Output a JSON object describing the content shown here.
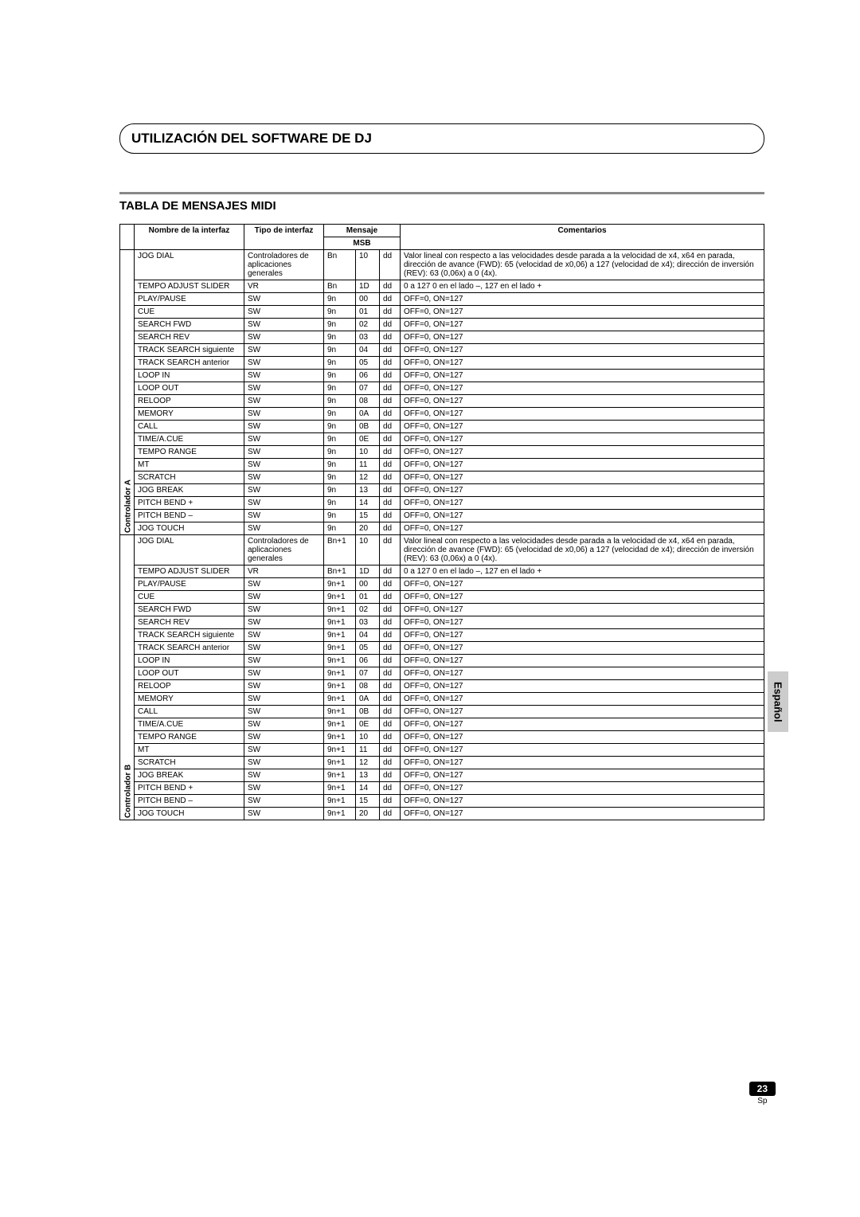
{
  "title": "UTILIZACIÓN DEL SOFTWARE DE DJ",
  "section_title": "TABLA DE MENSAJES MIDI",
  "headers": {
    "name": "Nombre de la interfaz",
    "type": "Tipo de interfaz",
    "message": "Mensaje",
    "msb": "MSB",
    "comments": "Comentarios"
  },
  "side_label": "Español",
  "page_number": "23",
  "page_lang": "Sp",
  "groups": [
    {
      "label": "Controlador A",
      "rows": [
        {
          "name": "JOG DIAL",
          "type": "Controladores de aplicaciones generales",
          "m1": "Bn",
          "m2": "10",
          "m3": "dd",
          "comm": "Valor lineal con respecto a las velocidades desde parada a la velocidad de x4, x64 en parada, dirección de avance (FWD): 65 (velocidad de x0,06) a 127 (velocidad de x4); dirección de inversión (REV): 63 (0,06x) a 0 (4x)."
        },
        {
          "name": "TEMPO ADJUST SLIDER",
          "type": "VR",
          "m1": "Bn",
          "m2": "1D",
          "m3": "dd",
          "comm": "0 a 127          0 en el lado –, 127 en el lado +"
        },
        {
          "name": "PLAY/PAUSE",
          "type": "SW",
          "m1": "9n",
          "m2": "00",
          "m3": "dd",
          "comm": "OFF=0, ON=127"
        },
        {
          "name": "CUE",
          "type": "SW",
          "m1": "9n",
          "m2": "01",
          "m3": "dd",
          "comm": "OFF=0, ON=127"
        },
        {
          "name": "SEARCH FWD",
          "type": "SW",
          "m1": "9n",
          "m2": "02",
          "m3": "dd",
          "comm": "OFF=0, ON=127"
        },
        {
          "name": "SEARCH REV",
          "type": "SW",
          "m1": "9n",
          "m2": "03",
          "m3": "dd",
          "comm": "OFF=0, ON=127"
        },
        {
          "name": "TRACK SEARCH siguiente",
          "type": "SW",
          "m1": "9n",
          "m2": "04",
          "m3": "dd",
          "comm": "OFF=0, ON=127"
        },
        {
          "name": "TRACK SEARCH anterior",
          "type": "SW",
          "m1": "9n",
          "m2": "05",
          "m3": "dd",
          "comm": "OFF=0, ON=127"
        },
        {
          "name": "LOOP IN",
          "type": "SW",
          "m1": "9n",
          "m2": "06",
          "m3": "dd",
          "comm": "OFF=0, ON=127"
        },
        {
          "name": "LOOP OUT",
          "type": "SW",
          "m1": "9n",
          "m2": "07",
          "m3": "dd",
          "comm": "OFF=0, ON=127"
        },
        {
          "name": "RELOOP",
          "type": "SW",
          "m1": "9n",
          "m2": "08",
          "m3": "dd",
          "comm": "OFF=0, ON=127"
        },
        {
          "name": "MEMORY",
          "type": "SW",
          "m1": "9n",
          "m2": "0A",
          "m3": "dd",
          "comm": "OFF=0, ON=127"
        },
        {
          "name": "CALL",
          "type": "SW",
          "m1": "9n",
          "m2": "0B",
          "m3": "dd",
          "comm": "OFF=0, ON=127"
        },
        {
          "name": "TIME/A.CUE",
          "type": "SW",
          "m1": "9n",
          "m2": "0E",
          "m3": "dd",
          "comm": "OFF=0, ON=127"
        },
        {
          "name": "TEMPO RANGE",
          "type": "SW",
          "m1": "9n",
          "m2": "10",
          "m3": "dd",
          "comm": "OFF=0, ON=127"
        },
        {
          "name": "MT",
          "type": "SW",
          "m1": "9n",
          "m2": "11",
          "m3": "dd",
          "comm": "OFF=0, ON=127"
        },
        {
          "name": "SCRATCH",
          "type": "SW",
          "m1": "9n",
          "m2": "12",
          "m3": "dd",
          "comm": "OFF=0, ON=127"
        },
        {
          "name": "JOG BREAK",
          "type": "SW",
          "m1": "9n",
          "m2": "13",
          "m3": "dd",
          "comm": "OFF=0, ON=127"
        },
        {
          "name": "PITCH BEND +",
          "type": "SW",
          "m1": "9n",
          "m2": "14",
          "m3": "dd",
          "comm": "OFF=0, ON=127"
        },
        {
          "name": "PITCH BEND –",
          "type": "SW",
          "m1": "9n",
          "m2": "15",
          "m3": "dd",
          "comm": "OFF=0, ON=127"
        },
        {
          "name": "JOG TOUCH",
          "type": "SW",
          "m1": "9n",
          "m2": "20",
          "m3": "dd",
          "comm": "OFF=0, ON=127"
        }
      ]
    },
    {
      "label": "Controlador B",
      "rows": [
        {
          "name": "JOG DIAL",
          "type": "Controladores de aplicaciones generales",
          "m1": "Bn+1",
          "m2": "10",
          "m3": "dd",
          "comm": "Valor lineal con respecto a las velocidades desde parada a la velocidad de x4, x64 en parada, dirección de avance (FWD): 65 (velocidad de x0,06) a 127 (velocidad de x4); dirección de inversión (REV): 63 (0,06x) a 0 (4x)."
        },
        {
          "name": "TEMPO ADJUST SLIDER",
          "type": "VR",
          "m1": "Bn+1",
          "m2": "1D",
          "m3": "dd",
          "comm": "0 a 127          0 en el lado –, 127 en el lado +"
        },
        {
          "name": "PLAY/PAUSE",
          "type": "SW",
          "m1": "9n+1",
          "m2": "00",
          "m3": "dd",
          "comm": "OFF=0, ON=127"
        },
        {
          "name": "CUE",
          "type": "SW",
          "m1": "9n+1",
          "m2": "01",
          "m3": "dd",
          "comm": "OFF=0, ON=127"
        },
        {
          "name": "SEARCH FWD",
          "type": "SW",
          "m1": "9n+1",
          "m2": "02",
          "m3": "dd",
          "comm": "OFF=0, ON=127"
        },
        {
          "name": "SEARCH REV",
          "type": "SW",
          "m1": "9n+1",
          "m2": "03",
          "m3": "dd",
          "comm": "OFF=0, ON=127"
        },
        {
          "name": "TRACK SEARCH siguiente",
          "type": "SW",
          "m1": "9n+1",
          "m2": "04",
          "m3": "dd",
          "comm": "OFF=0, ON=127"
        },
        {
          "name": "TRACK SEARCH anterior",
          "type": "SW",
          "m1": "9n+1",
          "m2": "05",
          "m3": "dd",
          "comm": "OFF=0, ON=127"
        },
        {
          "name": "LOOP IN",
          "type": "SW",
          "m1": "9n+1",
          "m2": "06",
          "m3": "dd",
          "comm": "OFF=0, ON=127"
        },
        {
          "name": "LOOP OUT",
          "type": "SW",
          "m1": "9n+1",
          "m2": "07",
          "m3": "dd",
          "comm": "OFF=0, ON=127"
        },
        {
          "name": "RELOOP",
          "type": "SW",
          "m1": "9n+1",
          "m2": "08",
          "m3": "dd",
          "comm": "OFF=0, ON=127"
        },
        {
          "name": "MEMORY",
          "type": "SW",
          "m1": "9n+1",
          "m2": "0A",
          "m3": "dd",
          "comm": "OFF=0, ON=127"
        },
        {
          "name": "CALL",
          "type": "SW",
          "m1": "9n+1",
          "m2": "0B",
          "m3": "dd",
          "comm": "OFF=0, ON=127"
        },
        {
          "name": "TIME/A.CUE",
          "type": "SW",
          "m1": "9n+1",
          "m2": "0E",
          "m3": "dd",
          "comm": "OFF=0, ON=127"
        },
        {
          "name": "TEMPO RANGE",
          "type": "SW",
          "m1": "9n+1",
          "m2": "10",
          "m3": "dd",
          "comm": "OFF=0, ON=127"
        },
        {
          "name": "MT",
          "type": "SW",
          "m1": "9n+1",
          "m2": "11",
          "m3": "dd",
          "comm": "OFF=0, ON=127"
        },
        {
          "name": "SCRATCH",
          "type": "SW",
          "m1": "9n+1",
          "m2": "12",
          "m3": "dd",
          "comm": "OFF=0, ON=127"
        },
        {
          "name": "JOG BREAK",
          "type": "SW",
          "m1": "9n+1",
          "m2": "13",
          "m3": "dd",
          "comm": "OFF=0, ON=127"
        },
        {
          "name": "PITCH BEND +",
          "type": "SW",
          "m1": "9n+1",
          "m2": "14",
          "m3": "dd",
          "comm": "OFF=0, ON=127"
        },
        {
          "name": "PITCH BEND –",
          "type": "SW",
          "m1": "9n+1",
          "m2": "15",
          "m3": "dd",
          "comm": "OFF=0, ON=127"
        },
        {
          "name": "JOG TOUCH",
          "type": "SW",
          "m1": "9n+1",
          "m2": "20",
          "m3": "dd",
          "comm": "OFF=0, ON=127"
        }
      ]
    }
  ]
}
